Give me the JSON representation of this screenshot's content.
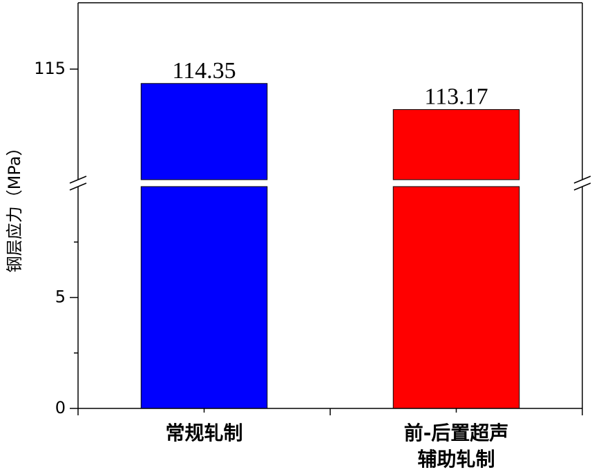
{
  "chart_data": {
    "type": "bar",
    "y_label": "钢层应力（MPa）",
    "categories": [
      [
        "常规轧制"
      ],
      [
        "前-后置超声",
        "辅助轧制"
      ]
    ],
    "series": [
      {
        "values": [
          114.35,
          113.17
        ],
        "colors": [
          "#0000ff",
          "#ff0000"
        ]
      }
    ],
    "ylim_lower": [
      0,
      10
    ],
    "yticks_lower": [
      0,
      5
    ],
    "minor_yticks_lower": [
      2.5,
      7.5
    ],
    "ylim_upper": [
      110,
      118
    ],
    "yticks_upper": [
      115
    ]
  }
}
